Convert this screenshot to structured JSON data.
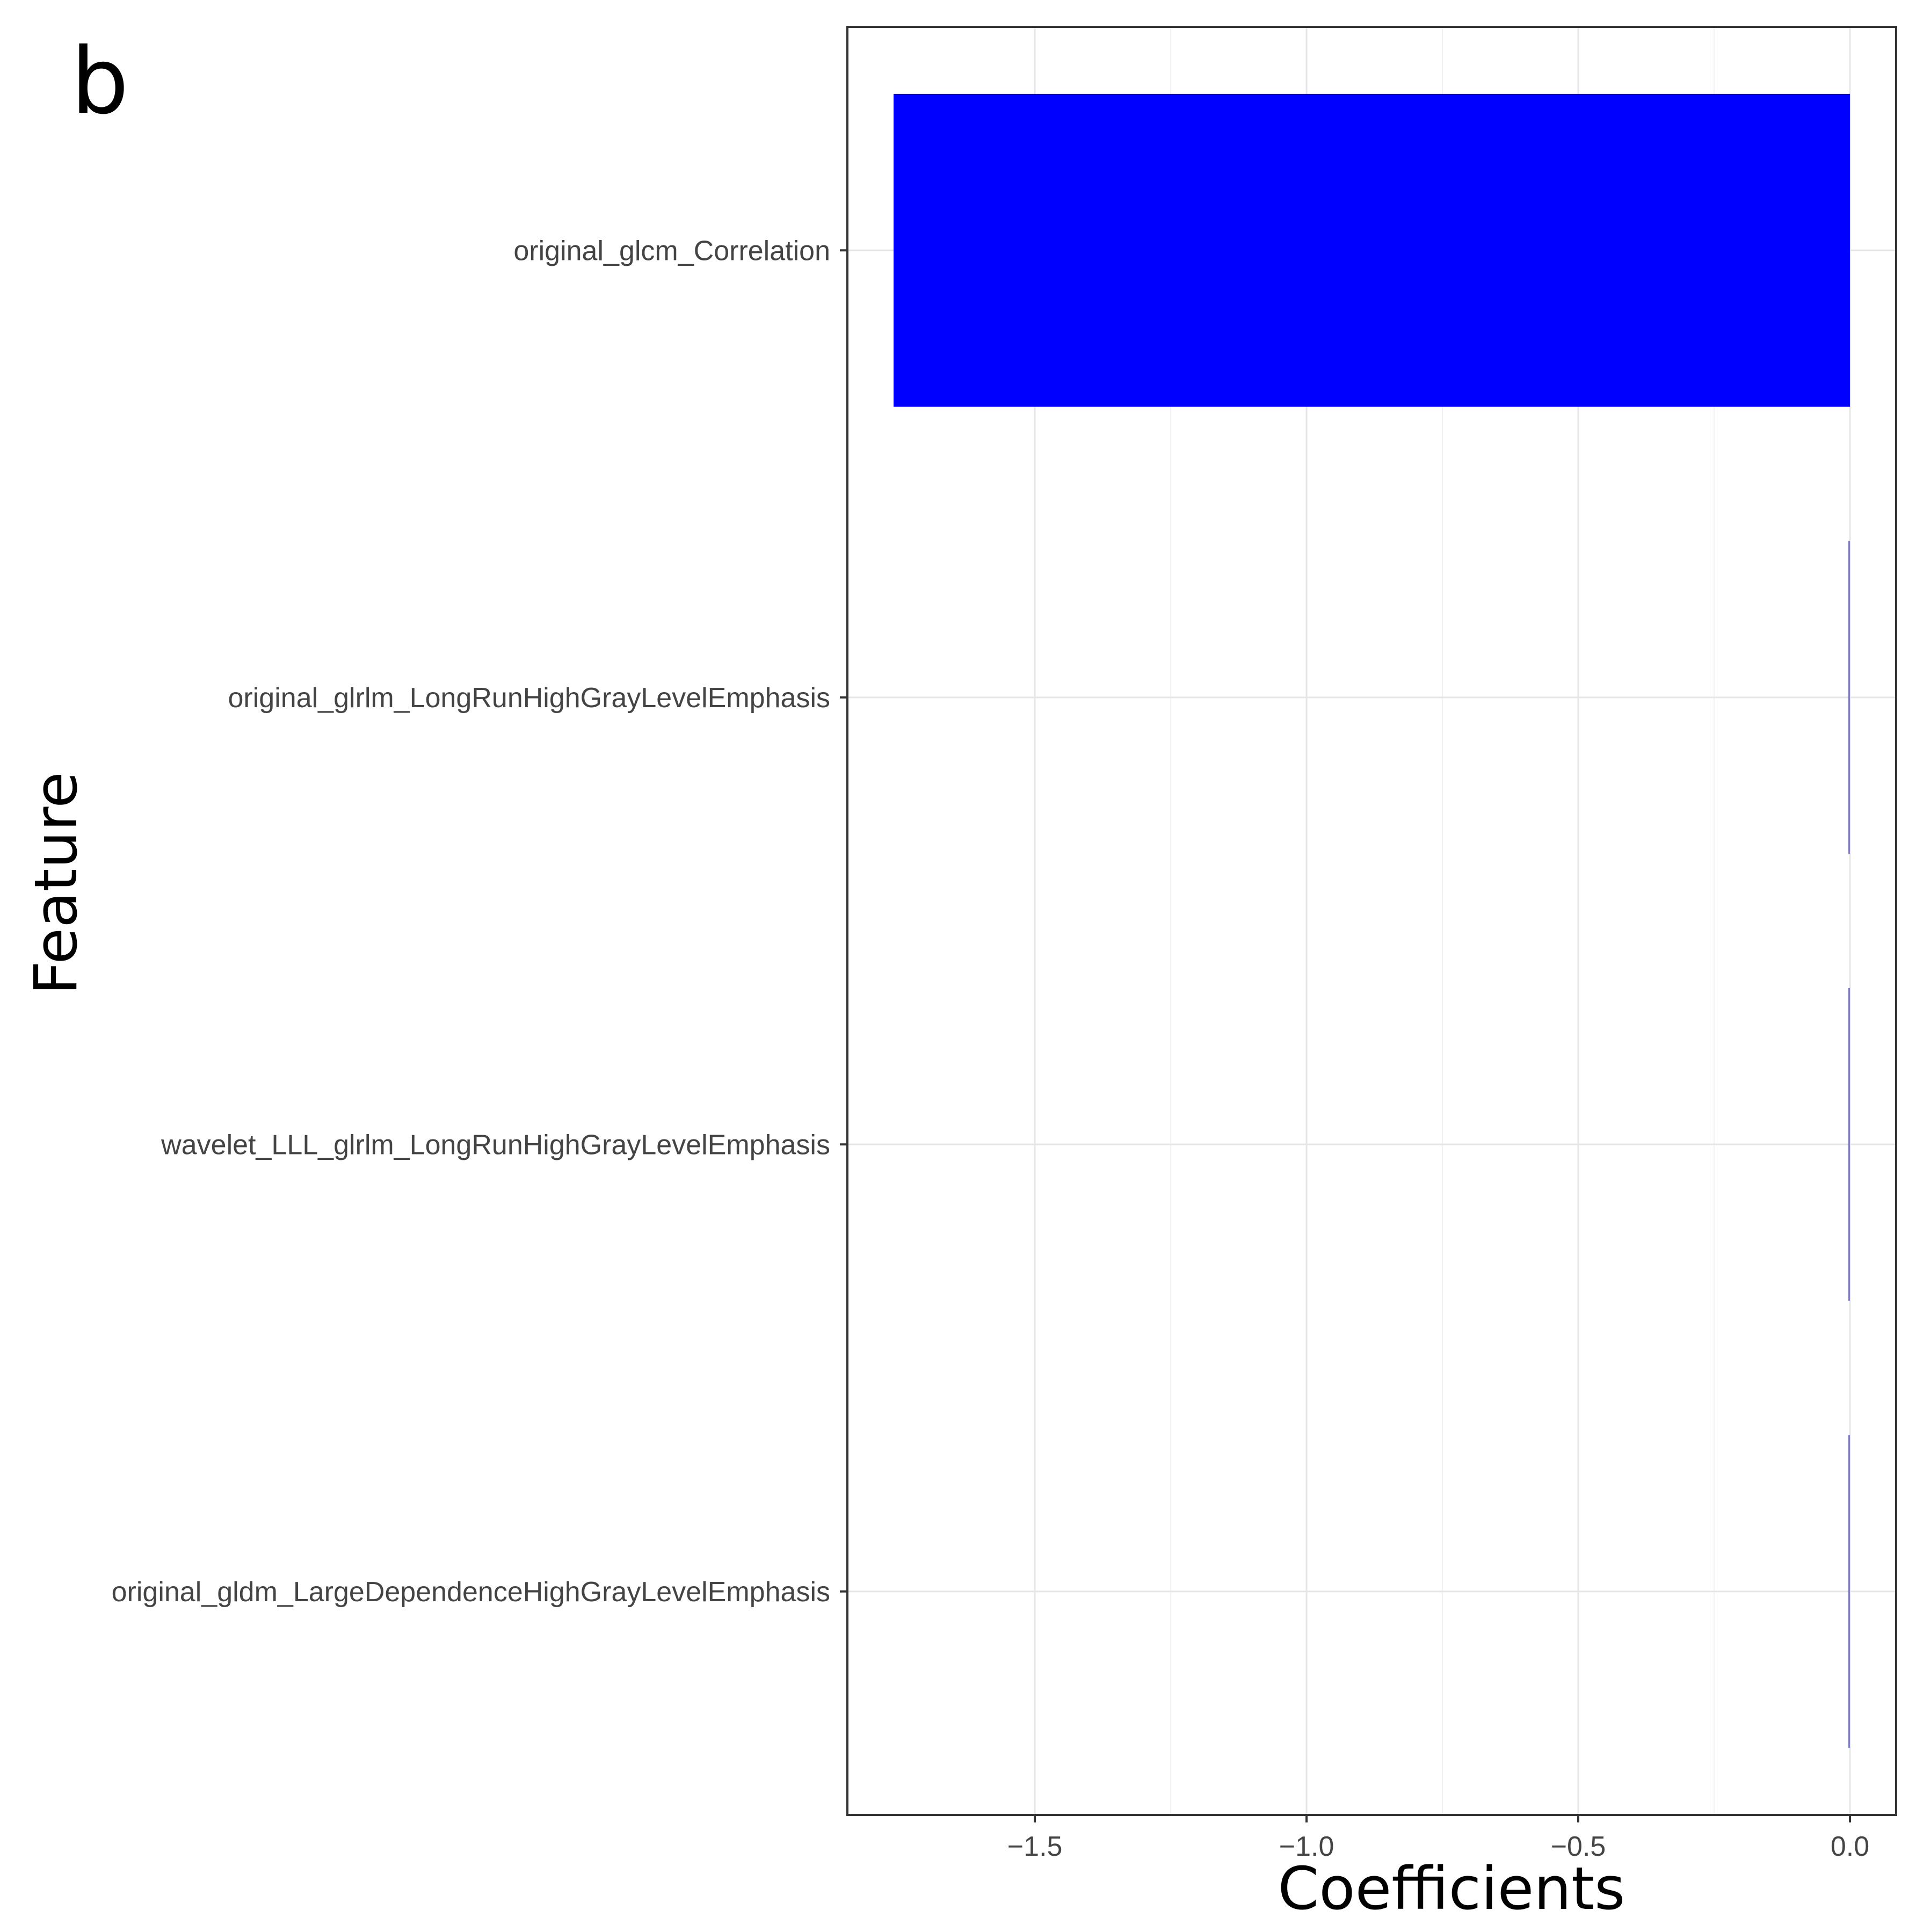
{
  "panel_label": "b",
  "chart_data": {
    "type": "bar",
    "orientation": "horizontal",
    "categories": [
      "original_glcm_Correlation",
      "original_glrlm_LongRunHighGrayLevelEmphasis",
      "wavelet_LLL_glrlm_LongRunHighGrayLevelEmphasis",
      "original_gldm_LargeDependenceHighGrayLevelEmphasis"
    ],
    "values": [
      -1.76,
      -0.003,
      -0.003,
      -0.003
    ],
    "bar_colors": [
      "#0000ff",
      "#8080c0",
      "#8080c0",
      "#8080c0"
    ],
    "xlabel": "Coefficients",
    "ylabel": "Feature",
    "xlim": [
      -1.845,
      0.085
    ],
    "xticks": [
      -1.5,
      -1.0,
      -0.5,
      0.0
    ],
    "xtick_labels": [
      "−1.5",
      "−1.0",
      "−0.5",
      "0.0"
    ],
    "grid": true,
    "legend": "none"
  }
}
